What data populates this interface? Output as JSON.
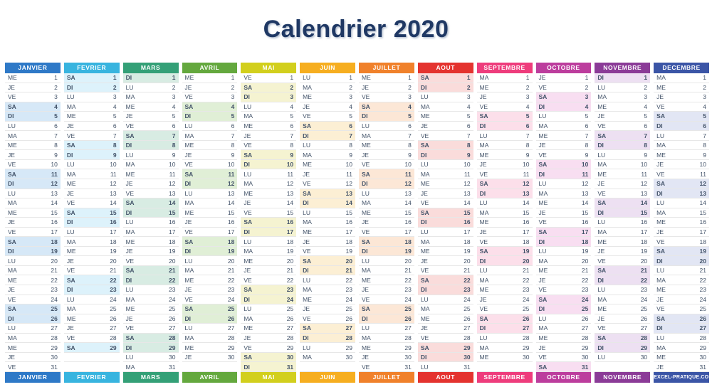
{
  "title": "Calendrier 2020",
  "brand": "EXCEL-PRATIQUE.COM",
  "day_cycle": [
    "LU",
    "MA",
    "ME",
    "JE",
    "VE",
    "SA",
    "DI"
  ],
  "weekend_days": [
    "SA",
    "DI"
  ],
  "colors": {
    "title_text": "#1F3864",
    "day_text": "#44546A",
    "row_border": "#E7E7E7",
    "header_text": "#FFFFFF"
  },
  "months": [
    {
      "name": "JANVIER",
      "footer_label": "JANVIER",
      "color": "#2E79C7",
      "weekend_tint": "#D6E8F7",
      "days": [
        "ME",
        "JE",
        "VE",
        "SA",
        "DI",
        "LU",
        "MA",
        "ME",
        "JE",
        "VE",
        "SA",
        "DI",
        "LU",
        "MA",
        "ME",
        "JE",
        "VE",
        "SA",
        "DI",
        "LU",
        "MA",
        "ME",
        "JE",
        "VE",
        "SA",
        "DI",
        "LU",
        "MA",
        "ME",
        "JE",
        "VE"
      ]
    },
    {
      "name": "FEVRIER",
      "footer_label": "FEVRIER",
      "color": "#38B4DF",
      "weekend_tint": "#DDF2FB",
      "days": [
        "SA",
        "DI",
        "LU",
        "MA",
        "ME",
        "JE",
        "VE",
        "SA",
        "DI",
        "LU",
        "MA",
        "ME",
        "JE",
        "VE",
        "SA",
        "DI",
        "LU",
        "MA",
        "ME",
        "JE",
        "VE",
        "SA",
        "DI",
        "LU",
        "MA",
        "ME",
        "JE",
        "VE",
        "SA"
      ]
    },
    {
      "name": "MARS",
      "footer_label": "MARS",
      "color": "#34A077",
      "weekend_tint": "#D8ECE3",
      "days": [
        "DI",
        "LU",
        "MA",
        "ME",
        "JE",
        "VE",
        "SA",
        "DI",
        "LU",
        "MA",
        "ME",
        "JE",
        "VE",
        "SA",
        "DI",
        "LU",
        "MA",
        "ME",
        "JE",
        "VE",
        "SA",
        "DI",
        "LU",
        "MA",
        "ME",
        "JE",
        "VE",
        "SA",
        "DI",
        "LU",
        "MA"
      ]
    },
    {
      "name": "AVRIL",
      "footer_label": "AVRIL",
      "color": "#64A83E",
      "weekend_tint": "#E0EFD6",
      "days": [
        "ME",
        "JE",
        "VE",
        "SA",
        "DI",
        "LU",
        "MA",
        "ME",
        "JE",
        "VE",
        "SA",
        "DI",
        "LU",
        "MA",
        "ME",
        "JE",
        "VE",
        "SA",
        "DI",
        "LU",
        "MA",
        "ME",
        "JE",
        "VE",
        "SA",
        "DI",
        "LU",
        "MA",
        "ME",
        "JE"
      ]
    },
    {
      "name": "MAI",
      "footer_label": "MAI",
      "color": "#D2CF1D",
      "weekend_tint": "#F5F3D1",
      "days": [
        "VE",
        "SA",
        "DI",
        "LU",
        "MA",
        "ME",
        "JE",
        "VE",
        "SA",
        "DI",
        "LU",
        "MA",
        "ME",
        "JE",
        "VE",
        "SA",
        "DI",
        "LU",
        "MA",
        "ME",
        "JE",
        "VE",
        "SA",
        "DI",
        "LU",
        "MA",
        "ME",
        "JE",
        "VE",
        "SA",
        "DI"
      ]
    },
    {
      "name": "JUIN",
      "footer_label": "JUIN",
      "color": "#F6AE20",
      "weekend_tint": "#FCEFD4",
      "days": [
        "LU",
        "MA",
        "ME",
        "JE",
        "VE",
        "SA",
        "DI",
        "LU",
        "MA",
        "ME",
        "JE",
        "VE",
        "SA",
        "DI",
        "LU",
        "MA",
        "ME",
        "JE",
        "VE",
        "SA",
        "DI",
        "LU",
        "MA",
        "ME",
        "JE",
        "VE",
        "SA",
        "DI",
        "LU",
        "MA"
      ]
    },
    {
      "name": "JUILLET",
      "footer_label": "JUILLET",
      "color": "#F0812B",
      "weekend_tint": "#FCE7D6",
      "days": [
        "ME",
        "JE",
        "VE",
        "SA",
        "DI",
        "LU",
        "MA",
        "ME",
        "JE",
        "VE",
        "SA",
        "DI",
        "LU",
        "MA",
        "ME",
        "JE",
        "VE",
        "SA",
        "DI",
        "LU",
        "MA",
        "ME",
        "JE",
        "VE",
        "SA",
        "DI",
        "LU",
        "MA",
        "ME",
        "JE",
        "VE"
      ]
    },
    {
      "name": "AOUT",
      "footer_label": "AOUT",
      "color": "#E4332F",
      "weekend_tint": "#FADCDB",
      "days": [
        "SA",
        "DI",
        "LU",
        "MA",
        "ME",
        "JE",
        "VE",
        "SA",
        "DI",
        "LU",
        "MA",
        "ME",
        "JE",
        "VE",
        "SA",
        "DI",
        "LU",
        "MA",
        "ME",
        "JE",
        "VE",
        "SA",
        "DI",
        "LU",
        "MA",
        "ME",
        "JE",
        "VE",
        "SA",
        "DI",
        "LU"
      ]
    },
    {
      "name": "SEPTEMBRE",
      "footer_label": "SEPTEMBRE",
      "color": "#EE3C7C",
      "weekend_tint": "#FCDFEA",
      "days": [
        "MA",
        "ME",
        "JE",
        "VE",
        "SA",
        "DI",
        "LU",
        "MA",
        "ME",
        "JE",
        "VE",
        "SA",
        "DI",
        "LU",
        "MA",
        "ME",
        "JE",
        "VE",
        "SA",
        "DI",
        "LU",
        "MA",
        "ME",
        "JE",
        "VE",
        "SA",
        "DI",
        "LU",
        "MA",
        "ME"
      ]
    },
    {
      "name": "OCTOBRE",
      "footer_label": "OCTOBRE",
      "color": "#BC3D9D",
      "weekend_tint": "#F8DEF1",
      "days": [
        "JE",
        "VE",
        "SA",
        "DI",
        "LU",
        "MA",
        "ME",
        "JE",
        "VE",
        "SA",
        "DI",
        "LU",
        "MA",
        "ME",
        "JE",
        "VE",
        "SA",
        "DI",
        "LU",
        "MA",
        "ME",
        "JE",
        "VE",
        "SA",
        "DI",
        "LU",
        "MA",
        "ME",
        "JE",
        "VE",
        "SA"
      ]
    },
    {
      "name": "NOVEMBRE",
      "footer_label": "NOVEMBRE",
      "color": "#8B3B97",
      "weekend_tint": "#EDE0F2",
      "days": [
        "DI",
        "LU",
        "MA",
        "ME",
        "JE",
        "VE",
        "SA",
        "DI",
        "LU",
        "MA",
        "ME",
        "JE",
        "VE",
        "SA",
        "DI",
        "LU",
        "MA",
        "ME",
        "JE",
        "VE",
        "SA",
        "DI",
        "LU",
        "MA",
        "ME",
        "JE",
        "VE",
        "SA",
        "DI",
        "LU"
      ]
    },
    {
      "name": "DECEMBRE",
      "footer_label": "EXCEL-PRATIQUE.COM",
      "color": "#3B55A6",
      "weekend_tint": "#E2E6F4",
      "days": [
        "MA",
        "ME",
        "JE",
        "VE",
        "SA",
        "DI",
        "LU",
        "MA",
        "ME",
        "JE",
        "VE",
        "SA",
        "DI",
        "LU",
        "MA",
        "ME",
        "JE",
        "VE",
        "SA",
        "DI",
        "LU",
        "MA",
        "ME",
        "JE",
        "VE",
        "SA",
        "DI",
        "LU",
        "MA",
        "ME",
        "JE"
      ]
    }
  ]
}
